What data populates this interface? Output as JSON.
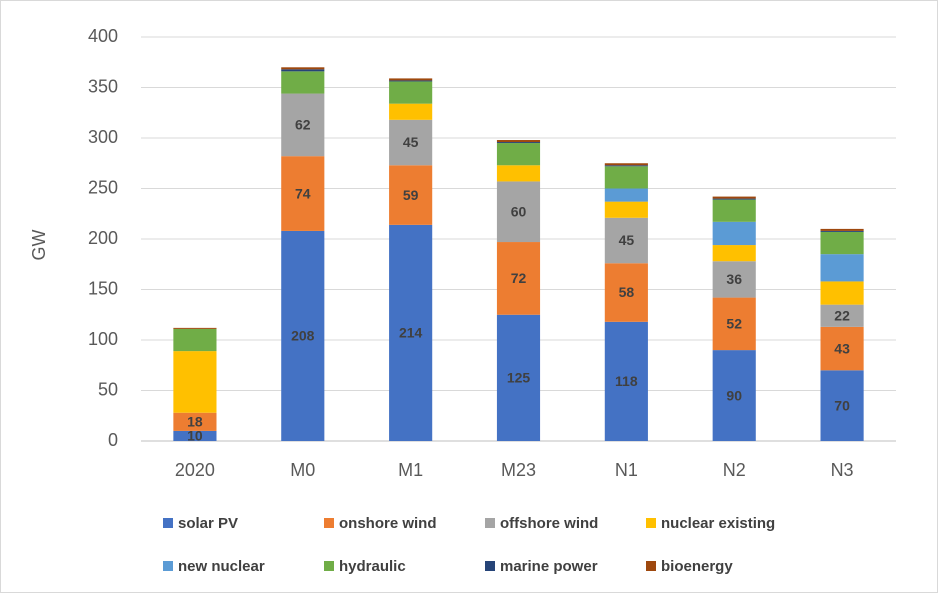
{
  "chart_data": {
    "type": "stacked_bar",
    "y_label": "GW",
    "categories": [
      "2020",
      "M0",
      "M1",
      "M23",
      "N1",
      "N2",
      "N3"
    ],
    "ylim": [
      0,
      400
    ],
    "yticks": [
      0,
      50,
      100,
      150,
      200,
      250,
      300,
      350,
      400
    ],
    "grid": true,
    "series": [
      {
        "name": "solar PV",
        "color": "#4472c4",
        "data_labels": true,
        "values": [
          10,
          208,
          214,
          125,
          118,
          90,
          70
        ]
      },
      {
        "name": "onshore wind",
        "color": "#ed7d31",
        "data_labels": true,
        "values": [
          18,
          74,
          59,
          72,
          58,
          52,
          43
        ]
      },
      {
        "name": "offshore wind",
        "color": "#a5a5a5",
        "data_labels": true,
        "values": [
          0,
          62,
          45,
          60,
          45,
          36,
          22
        ]
      },
      {
        "name": "nuclear existing",
        "color": "#ffc000",
        "values": [
          61,
          0,
          16,
          16,
          16,
          16,
          23
        ]
      },
      {
        "name": "new nuclear",
        "color": "#5b9bd5",
        "values": [
          0,
          0,
          0,
          0,
          13,
          23,
          27
        ]
      },
      {
        "name": "hydraulic",
        "color": "#70ad47",
        "values": [
          22,
          22,
          22,
          22,
          22,
          22,
          22
        ]
      },
      {
        "name": "marine power",
        "color": "#264478",
        "values": [
          0,
          2,
          1,
          1,
          1,
          1,
          1
        ]
      },
      {
        "name": "bioenergy",
        "color": "#9e480e",
        "values": [
          1,
          2,
          2,
          2,
          2,
          2,
          2
        ]
      }
    ]
  }
}
